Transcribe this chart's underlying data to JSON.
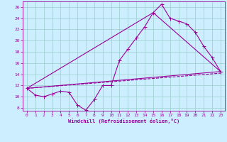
{
  "xlabel": "Windchill (Refroidissement éolien,°C)",
  "x_ticks": [
    0,
    1,
    2,
    3,
    4,
    5,
    6,
    7,
    8,
    9,
    10,
    11,
    12,
    13,
    14,
    15,
    16,
    17,
    18,
    19,
    20,
    21,
    22,
    23
  ],
  "ylim": [
    7.5,
    27
  ],
  "xlim": [
    -0.5,
    23.5
  ],
  "yticks": [
    8,
    10,
    12,
    14,
    16,
    18,
    20,
    22,
    24,
    26
  ],
  "bg_color": "#cceeff",
  "line_color": "#990099",
  "grid_color": "#99cccc",
  "line1_x": [
    0,
    1,
    2,
    3,
    4,
    5,
    6,
    7,
    8,
    9,
    10,
    11,
    12,
    13,
    14,
    15,
    16,
    17,
    18,
    19,
    20,
    21,
    22,
    23
  ],
  "line1_y": [
    11.5,
    10.3,
    10.0,
    10.5,
    11.0,
    10.8,
    8.5,
    7.6,
    9.5,
    12.0,
    12.0,
    16.5,
    18.5,
    20.5,
    22.5,
    25.0,
    26.5,
    24.0,
    23.5,
    23.0,
    21.5,
    19.0,
    17.0,
    14.5
  ],
  "line2_x": [
    0,
    23
  ],
  "line2_y": [
    11.5,
    14.5
  ],
  "line3_x": [
    0,
    15,
    23
  ],
  "line3_y": [
    11.5,
    25.0,
    14.5
  ],
  "line4_x": [
    0,
    23
  ],
  "line4_y": [
    11.5,
    14.2
  ]
}
